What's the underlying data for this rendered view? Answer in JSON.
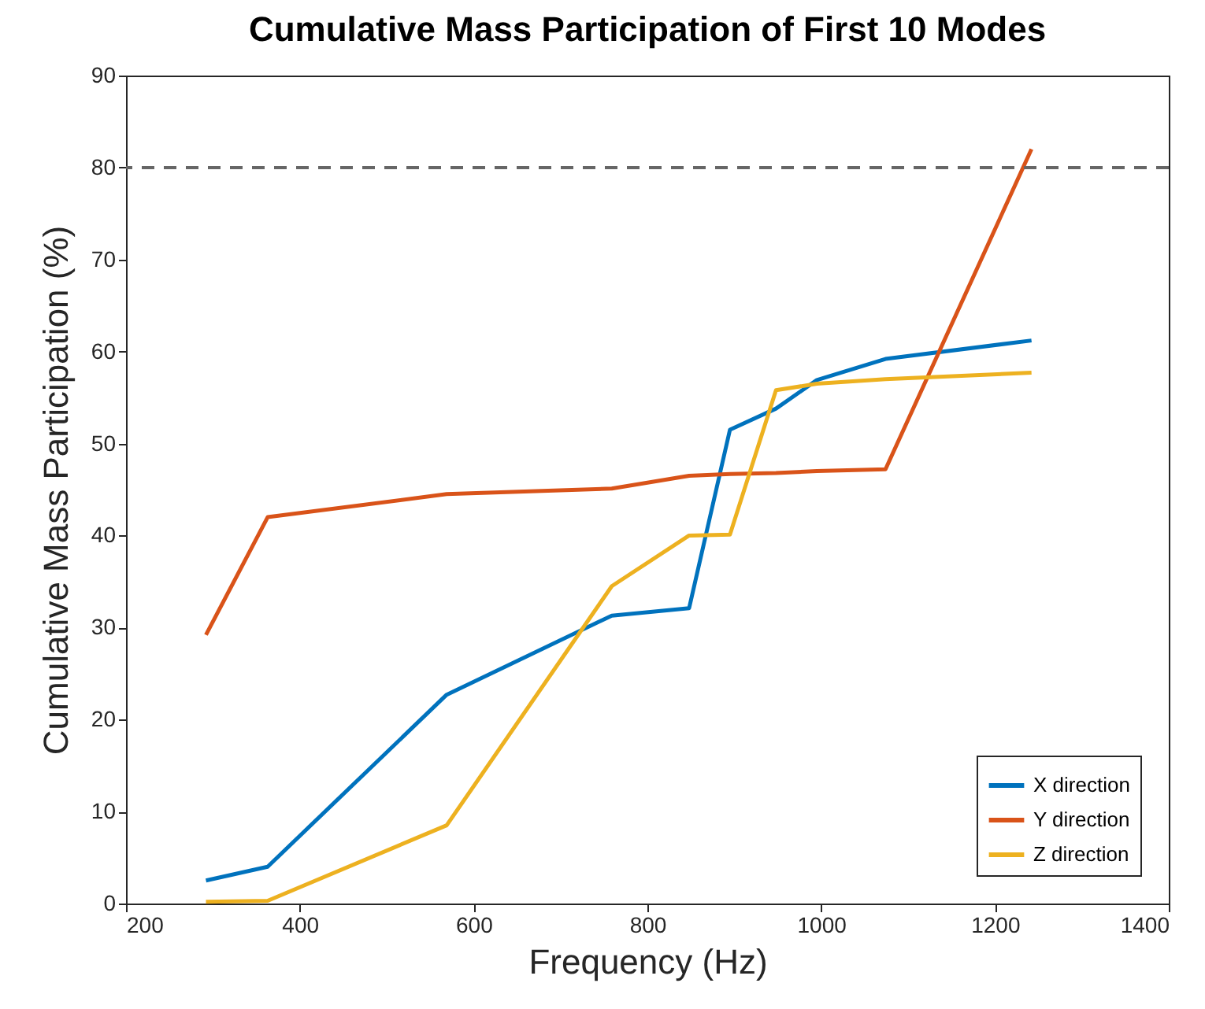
{
  "chart_data": {
    "type": "line",
    "title": "Cumulative Mass Participation of First 10 Modes",
    "xlabel": "Frequency (Hz)",
    "ylabel": "Cumulative Mass Participation (%)",
    "x": [
      292,
      363,
      569,
      759,
      848,
      895,
      948,
      995,
      1074,
      1242
    ],
    "series": [
      {
        "name": "X direction",
        "color": "#0072bd",
        "values": [
          2.5,
          4.0,
          22.7,
          31.3,
          32.1,
          51.5,
          53.8,
          56.9,
          59.2,
          61.2
        ]
      },
      {
        "name": "Y direction",
        "color": "#d95319",
        "values": [
          29.2,
          42.0,
          44.5,
          45.1,
          46.5,
          46.7,
          46.8,
          47.0,
          47.2,
          82.0
        ]
      },
      {
        "name": "Z direction",
        "color": "#edb120",
        "values": [
          0.2,
          0.3,
          8.5,
          34.5,
          40.0,
          40.1,
          55.8,
          56.5,
          57.0,
          57.7
        ]
      }
    ],
    "xlim": [
      200,
      1400
    ],
    "xticks": [
      200,
      400,
      600,
      800,
      1000,
      1200,
      1400
    ],
    "ylim": [
      0,
      90
    ],
    "yticks": [
      0,
      10,
      20,
      30,
      40,
      50,
      60,
      70,
      80,
      90
    ],
    "ref_lines": [
      {
        "axis": "y",
        "value": 80,
        "color": "#666666",
        "line_style": "dashed"
      }
    ],
    "grid": false,
    "legend": "bottom right",
    "marker": "none",
    "line_style": "solid"
  }
}
